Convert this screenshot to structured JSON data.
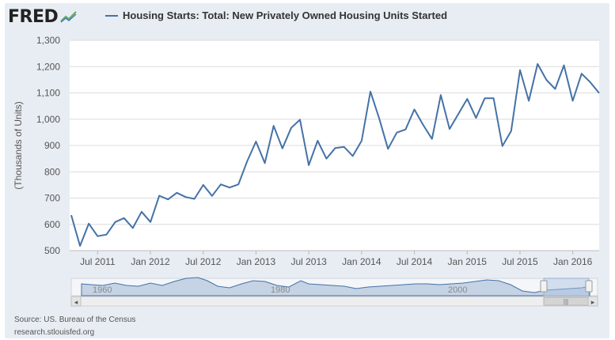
{
  "logo": {
    "text": "FRED"
  },
  "legend": {
    "label": "Housing Starts: Total: New Privately Owned Housing Units Started",
    "color": "#4572a7"
  },
  "source": {
    "line1": "Source: US. Bureau of the Census",
    "line2": "research.stlouisfed.org"
  },
  "navigator": {
    "labels": [
      "1960",
      "1980",
      "2000"
    ],
    "left_arrow": "◂",
    "right_arrow": "▸",
    "grip": "|||"
  },
  "chart_data": {
    "type": "line",
    "title": "Housing Starts: Total: New Privately Owned Housing Units Started",
    "xlabel": "",
    "ylabel": "(Thousands of Units)",
    "ylim": [
      500,
      1300
    ],
    "yticks": [
      500,
      600,
      700,
      800,
      900,
      1000,
      1100,
      1200,
      1300
    ],
    "ytick_labels": [
      "500",
      "600",
      "700",
      "800",
      "900",
      "1,000",
      "1,100",
      "1,200",
      "1,300"
    ],
    "xtick_labels": [
      {
        "label": "Jul 2011",
        "index": 3
      },
      {
        "label": "Jan 2012",
        "index": 9
      },
      {
        "label": "Jul 2012",
        "index": 15
      },
      {
        "label": "Jan 2013",
        "index": 21
      },
      {
        "label": "Jul 2013",
        "index": 27
      },
      {
        "label": "Jan 2014",
        "index": 33
      },
      {
        "label": "Jul 2014",
        "index": 39
      },
      {
        "label": "Jan 2015",
        "index": 45
      },
      {
        "label": "Jul 2015",
        "index": 51
      },
      {
        "label": "Jan 2016",
        "index": 57
      }
    ],
    "series": [
      {
        "name": "Housing Starts: Total: New Privately Owned Housing Units Started",
        "start": "2011-04",
        "values": [
          635,
          518,
          603,
          555,
          561,
          609,
          624,
          586,
          648,
          609,
          709,
          695,
          720,
          704,
          697,
          750,
          708,
          752,
          740,
          752,
          840,
          915,
          833,
          975,
          889,
          967,
          998,
          825,
          918,
          850,
          890,
          895,
          860,
          918,
          1105,
          1003,
          887,
          949,
          961,
          1037,
          978,
          925,
          1092,
          963,
          1020,
          1077,
          1005,
          1080,
          1080,
          898,
          955,
          1187,
          1070,
          1210,
          1150,
          1115,
          1205,
          1070,
          1173,
          1140,
          1099
        ]
      }
    ]
  }
}
